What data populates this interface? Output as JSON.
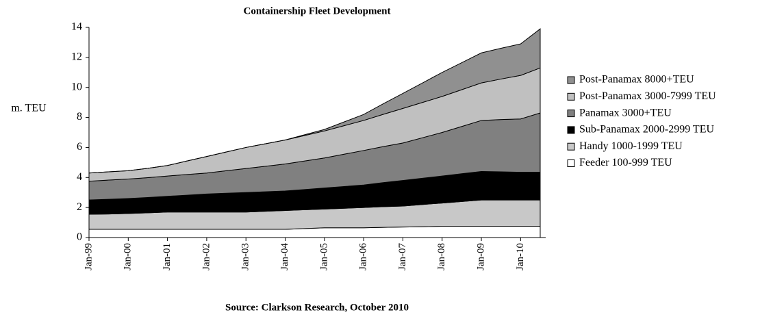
{
  "chart_data": {
    "type": "stacked_area",
    "title": "Containership Fleet Development",
    "y_label": "m. TEU",
    "source": "Source: Clarkson Research, October 2010",
    "categories": [
      "Jan-99",
      null,
      "Jan-00",
      null,
      "Jan-01",
      null,
      "Jan-02",
      null,
      "Jan-03",
      null,
      "Jan-04",
      null,
      "Jan-05",
      null,
      "Jan-06",
      null,
      "Jan-07",
      null,
      "Jan-08",
      null,
      "Jan-09",
      null,
      "Jan-10",
      null
    ],
    "ylim": [
      0,
      14
    ],
    "yticks": [
      0,
      2,
      4,
      6,
      8,
      10,
      12,
      14
    ],
    "legend": "right",
    "series": [
      {
        "name": "Feeder 100-999 TEU",
        "color": "#ffffff",
        "values": [
          0.55,
          0.55,
          0.55,
          0.55,
          0.55,
          0.55,
          0.55,
          0.55,
          0.55,
          0.55,
          0.55,
          0.6,
          0.65,
          0.65,
          0.65,
          0.68,
          0.7,
          0.72,
          0.75,
          0.75,
          0.75,
          0.75,
          0.75,
          0.75
        ]
      },
      {
        "name": "Handy 1000-1999 TEU",
        "color": "#c8c8c8",
        "values": [
          1.0,
          1.02,
          1.05,
          1.1,
          1.15,
          1.15,
          1.15,
          1.15,
          1.15,
          1.2,
          1.25,
          1.25,
          1.25,
          1.3,
          1.35,
          1.38,
          1.4,
          1.48,
          1.55,
          1.65,
          1.75,
          1.75,
          1.75,
          1.75
        ]
      },
      {
        "name": "Sub-Panamax 2000-2999 TEU",
        "color": "#000000",
        "values": [
          0.95,
          0.98,
          1.0,
          1.02,
          1.05,
          1.12,
          1.2,
          1.25,
          1.3,
          1.3,
          1.3,
          1.35,
          1.4,
          1.45,
          1.5,
          1.6,
          1.7,
          1.75,
          1.8,
          1.85,
          1.9,
          1.88,
          1.85,
          1.85
        ]
      },
      {
        "name": "Panamax 3000+TEU",
        "color": "#808080",
        "values": [
          1.25,
          1.28,
          1.3,
          1.32,
          1.35,
          1.38,
          1.4,
          1.5,
          1.6,
          1.7,
          1.8,
          1.9,
          2.0,
          2.15,
          2.3,
          2.4,
          2.5,
          2.7,
          2.9,
          3.15,
          3.4,
          3.48,
          3.55,
          3.95
        ]
      },
      {
        "name": "Post-Panamax 3000-7999 TEU",
        "color": "#c0c0c0",
        "values": [
          0.55,
          0.55,
          0.55,
          0.62,
          0.7,
          0.9,
          1.1,
          1.25,
          1.4,
          1.5,
          1.6,
          1.7,
          1.8,
          1.9,
          2.0,
          2.15,
          2.3,
          2.35,
          2.4,
          2.45,
          2.5,
          2.7,
          2.9,
          3.0
        ]
      },
      {
        "name": "Post-Panamax 8000+TEU",
        "color": "#909090",
        "values": [
          0,
          0,
          0,
          0,
          0,
          0,
          0,
          0,
          0,
          0,
          0,
          0.05,
          0.1,
          0.25,
          0.4,
          0.7,
          1.0,
          1.3,
          1.6,
          1.8,
          2.0,
          2.05,
          2.1,
          2.6
        ]
      }
    ]
  }
}
